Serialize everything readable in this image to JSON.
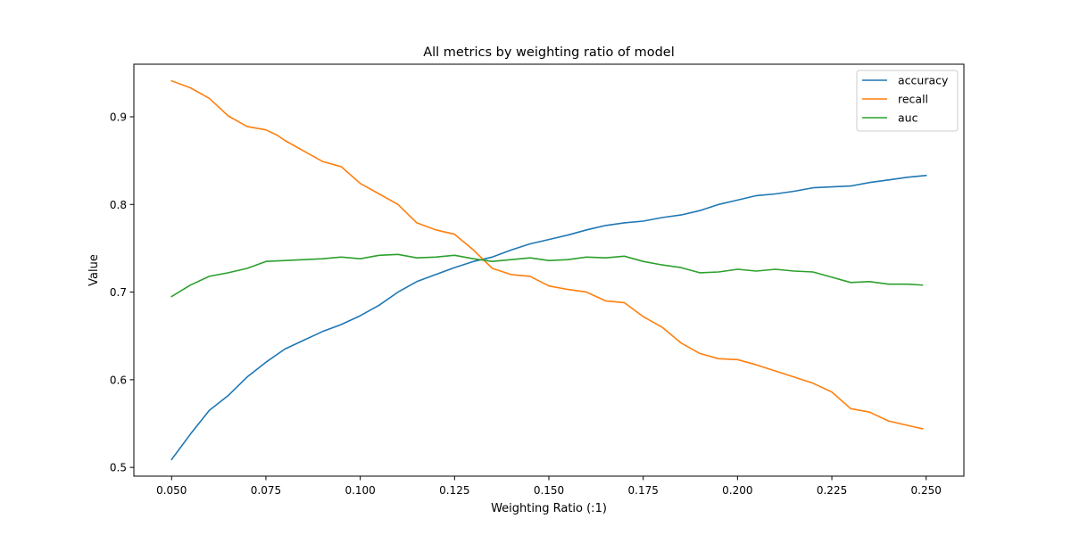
{
  "chart_data": {
    "type": "line",
    "title": "All metrics by weighting ratio of model",
    "xlabel": "Weighting Ratio (:1)",
    "ylabel": "Value",
    "xlim": [
      0.04,
      0.26
    ],
    "ylim": [
      0.49,
      0.96
    ],
    "xticks": [
      0.05,
      0.075,
      0.1,
      0.125,
      0.15,
      0.175,
      0.2,
      0.225,
      0.25
    ],
    "xtick_labels": [
      "0.050",
      "0.075",
      "0.100",
      "0.125",
      "0.150",
      "0.175",
      "0.200",
      "0.225",
      "0.250"
    ],
    "yticks": [
      0.5,
      0.6,
      0.7,
      0.8,
      0.9
    ],
    "ytick_labels": [
      "0.5",
      "0.6",
      "0.7",
      "0.8",
      "0.9"
    ],
    "grid": false,
    "legend_position": "top-right",
    "series": [
      {
        "name": "accuracy",
        "color": "#1f77b4",
        "x": [
          0.05,
          0.055,
          0.06,
          0.065,
          0.07,
          0.075,
          0.08,
          0.085,
          0.09,
          0.095,
          0.1,
          0.105,
          0.11,
          0.115,
          0.12,
          0.125,
          0.13,
          0.135,
          0.14,
          0.145,
          0.15,
          0.155,
          0.16,
          0.165,
          0.17,
          0.175,
          0.18,
          0.185,
          0.19,
          0.195,
          0.2,
          0.205,
          0.21,
          0.215,
          0.22,
          0.225,
          0.23,
          0.235,
          0.24,
          0.245,
          0.25
        ],
        "values": [
          0.509,
          0.538,
          0.565,
          0.582,
          0.603,
          0.62,
          0.635,
          0.645,
          0.655,
          0.663,
          0.673,
          0.685,
          0.7,
          0.712,
          0.72,
          0.728,
          0.735,
          0.74,
          0.748,
          0.755,
          0.76,
          0.765,
          0.771,
          0.776,
          0.779,
          0.781,
          0.785,
          0.788,
          0.793,
          0.8,
          0.805,
          0.81,
          0.812,
          0.815,
          0.819,
          0.82,
          0.821,
          0.825,
          0.828,
          0.831,
          0.833
        ]
      },
      {
        "name": "recall",
        "color": "#ff7f0e",
        "x": [
          0.05,
          0.055,
          0.06,
          0.062,
          0.065,
          0.07,
          0.075,
          0.078,
          0.08,
          0.085,
          0.09,
          0.095,
          0.1,
          0.105,
          0.11,
          0.115,
          0.12,
          0.125,
          0.13,
          0.135,
          0.14,
          0.145,
          0.15,
          0.155,
          0.16,
          0.165,
          0.17,
          0.175,
          0.18,
          0.185,
          0.19,
          0.195,
          0.2,
          0.205,
          0.21,
          0.215,
          0.22,
          0.225,
          0.23,
          0.235,
          0.24,
          0.245,
          0.249
        ],
        "values": [
          0.941,
          0.933,
          0.921,
          0.913,
          0.901,
          0.889,
          0.885,
          0.879,
          0.873,
          0.861,
          0.849,
          0.843,
          0.824,
          0.812,
          0.8,
          0.779,
          0.771,
          0.766,
          0.748,
          0.727,
          0.72,
          0.718,
          0.707,
          0.703,
          0.7,
          0.69,
          0.688,
          0.672,
          0.66,
          0.642,
          0.63,
          0.624,
          0.623,
          0.617,
          0.61,
          0.603,
          0.596,
          0.586,
          0.567,
          0.563,
          0.553,
          0.548,
          0.544
        ]
      },
      {
        "name": "auc",
        "color": "#2ca02c",
        "x": [
          0.05,
          0.055,
          0.06,
          0.065,
          0.07,
          0.075,
          0.08,
          0.085,
          0.09,
          0.095,
          0.1,
          0.105,
          0.11,
          0.115,
          0.12,
          0.125,
          0.13,
          0.135,
          0.14,
          0.145,
          0.15,
          0.155,
          0.16,
          0.165,
          0.17,
          0.175,
          0.18,
          0.185,
          0.19,
          0.195,
          0.2,
          0.205,
          0.21,
          0.215,
          0.22,
          0.225,
          0.23,
          0.235,
          0.24,
          0.245,
          0.249
        ],
        "values": [
          0.695,
          0.708,
          0.718,
          0.722,
          0.727,
          0.735,
          0.736,
          0.737,
          0.738,
          0.74,
          0.738,
          0.742,
          0.743,
          0.739,
          0.74,
          0.742,
          0.738,
          0.735,
          0.737,
          0.739,
          0.736,
          0.737,
          0.74,
          0.739,
          0.741,
          0.735,
          0.731,
          0.728,
          0.722,
          0.723,
          0.726,
          0.724,
          0.726,
          0.724,
          0.723,
          0.717,
          0.711,
          0.712,
          0.709,
          0.709,
          0.708
        ]
      }
    ]
  }
}
